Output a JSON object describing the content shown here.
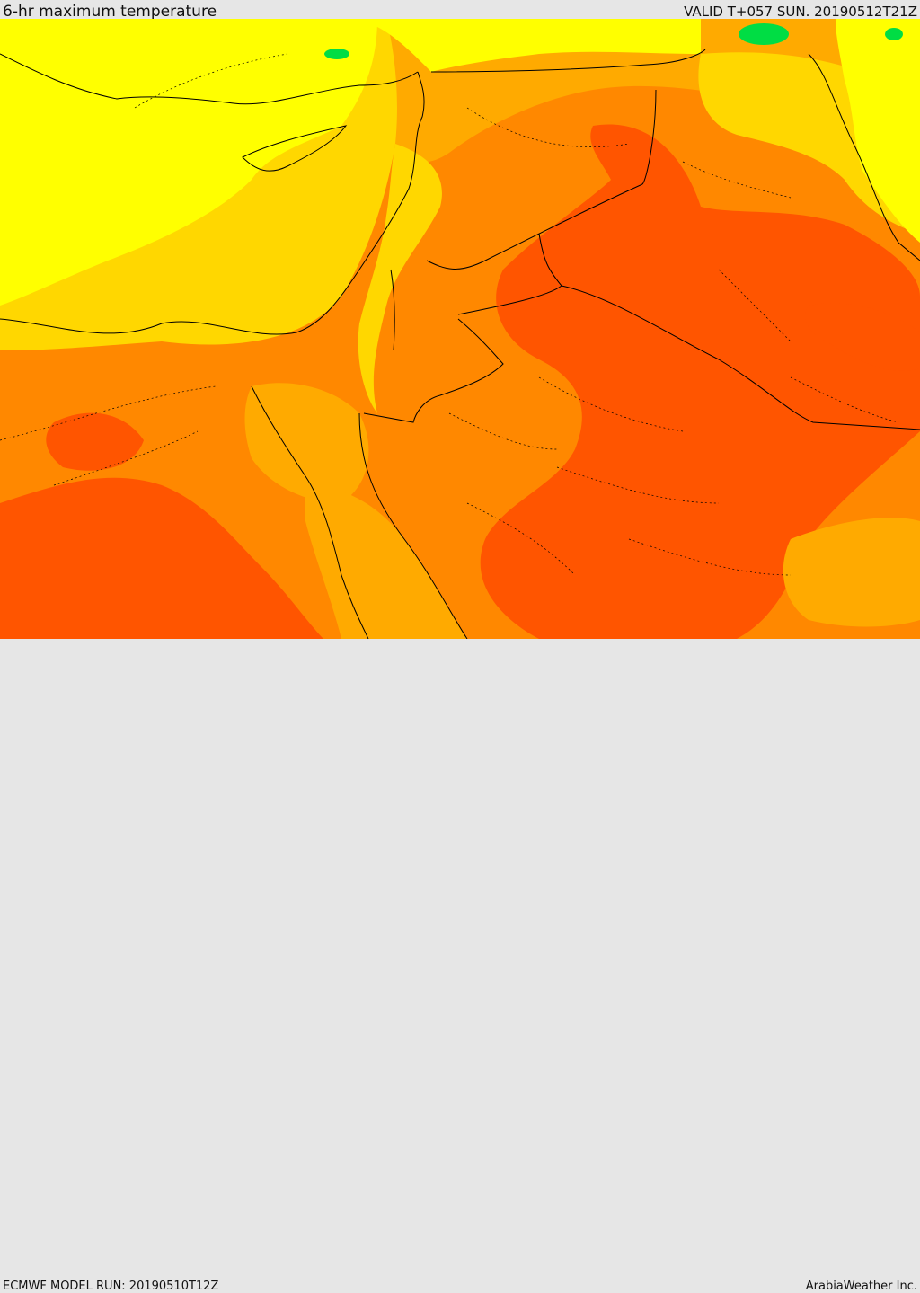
{
  "header": {
    "title": "6-hr maximum temperature",
    "valid": "VALID T+057 SUN. 20190512T21Z"
  },
  "footer": {
    "model_run": "ECMWF MODEL RUN: 20190510T12Z",
    "credit": "ArabiaWeather Inc."
  },
  "colors": {
    "bright_yellow": "#ffff00",
    "gold": "#ffd700",
    "amber": "#ffaa00",
    "orange": "#ff8800",
    "red_orange": "#ff5500",
    "red": "#ff2200",
    "green": "#00dd44",
    "border_line": "#000000"
  }
}
